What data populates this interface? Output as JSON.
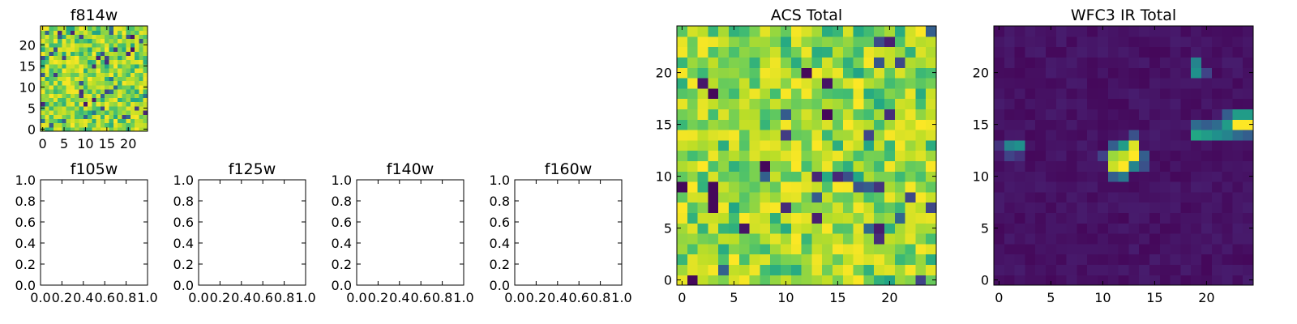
{
  "chart_data": [
    {
      "type": "heatmap",
      "title": "f814w",
      "xlim": [
        -0.5,
        24.5
      ],
      "ylim": [
        -0.5,
        24.5
      ],
      "xticks": [
        0,
        5,
        10,
        15,
        20
      ],
      "yticks": [
        0,
        5,
        10,
        15,
        20
      ],
      "colormap": "viridis",
      "grid": false,
      "size": [
        25,
        25
      ],
      "seed": 814,
      "distribution": "noise"
    },
    {
      "type": "heatmap",
      "title": "f105w",
      "xlim": [
        0,
        1
      ],
      "ylim": [
        0,
        1
      ],
      "xticks": [
        "0.0",
        "0.2",
        "0.4",
        "0.6",
        "0.8",
        "1.0"
      ],
      "yticks": [
        "0.0",
        "0.2",
        "0.4",
        "0.6",
        "0.8",
        "1.0"
      ],
      "empty": true
    },
    {
      "type": "heatmap",
      "title": "f125w",
      "xlim": [
        0,
        1
      ],
      "ylim": [
        0,
        1
      ],
      "xticks": [
        "0.0",
        "0.2",
        "0.4",
        "0.6",
        "0.8",
        "1.0"
      ],
      "yticks": [
        "0.0",
        "0.2",
        "0.4",
        "0.6",
        "0.8",
        "1.0"
      ],
      "empty": true
    },
    {
      "type": "heatmap",
      "title": "f140w",
      "xlim": [
        0,
        1
      ],
      "ylim": [
        0,
        1
      ],
      "xticks": [
        "0.0",
        "0.2",
        "0.4",
        "0.6",
        "0.8",
        "1.0"
      ],
      "yticks": [
        "0.0",
        "0.2",
        "0.4",
        "0.6",
        "0.8",
        "1.0"
      ],
      "empty": true
    },
    {
      "type": "heatmap",
      "title": "f160w",
      "xlim": [
        0,
        1
      ],
      "ylim": [
        0,
        1
      ],
      "xticks": [
        "0.0",
        "0.2",
        "0.4",
        "0.6",
        "0.8",
        "1.0"
      ],
      "yticks": [
        "0.0",
        "0.2",
        "0.4",
        "0.6",
        "0.8",
        "1.0"
      ],
      "empty": true
    },
    {
      "type": "heatmap",
      "title": "ACS Total",
      "xlim": [
        -0.5,
        24.5
      ],
      "ylim": [
        -0.5,
        24.5
      ],
      "xticks": [
        0,
        5,
        10,
        15,
        20
      ],
      "yticks": [
        0,
        5,
        10,
        15,
        20
      ],
      "colormap": "viridis",
      "grid": false,
      "size": [
        25,
        25
      ],
      "seed": 4242,
      "distribution": "noise",
      "dark_cells": [
        [
          14,
          16
        ],
        [
          8,
          11
        ],
        [
          3,
          8
        ],
        [
          3,
          9
        ],
        [
          3,
          7
        ],
        [
          1,
          0
        ],
        [
          3,
          18
        ],
        [
          0,
          9
        ],
        [
          12,
          20
        ]
      ]
    },
    {
      "type": "heatmap",
      "title": "WFC3 IR Total",
      "xlim": [
        -0.5,
        24.5
      ],
      "ylim": [
        -0.5,
        24.5
      ],
      "xticks": [
        0,
        5,
        10,
        15,
        20
      ],
      "yticks": [
        0,
        5,
        10,
        15,
        20
      ],
      "colormap": "viridis",
      "grid": false,
      "size": [
        25,
        25
      ],
      "seed": 153,
      "distribution": "background",
      "background_level": 0.05,
      "sources": [
        {
          "x": 12,
          "y": 11,
          "v": 1.0
        },
        {
          "x": 13,
          "y": 12,
          "v": 1.0
        },
        {
          "x": 13,
          "y": 13,
          "v": 0.95
        },
        {
          "x": 12,
          "y": 12,
          "v": 0.9
        },
        {
          "x": 11,
          "y": 11,
          "v": 0.92
        },
        {
          "x": 11,
          "y": 12,
          "v": 0.85
        },
        {
          "x": 12,
          "y": 13,
          "v": 0.55
        },
        {
          "x": 11,
          "y": 13,
          "v": 0.3
        },
        {
          "x": 13,
          "y": 11,
          "v": 0.45
        },
        {
          "x": 12,
          "y": 10,
          "v": 0.4
        },
        {
          "x": 11,
          "y": 10,
          "v": 0.3
        },
        {
          "x": 14,
          "y": 11,
          "v": 0.25
        },
        {
          "x": 13,
          "y": 14,
          "v": 0.25
        },
        {
          "x": 14,
          "y": 12,
          "v": 0.3
        },
        {
          "x": 10,
          "y": 12,
          "v": 0.2
        },
        {
          "x": 24,
          "y": 15,
          "v": 1.0
        },
        {
          "x": 23,
          "y": 15,
          "v": 1.0
        },
        {
          "x": 22,
          "y": 15,
          "v": 0.55
        },
        {
          "x": 23,
          "y": 16,
          "v": 0.55
        },
        {
          "x": 24,
          "y": 16,
          "v": 0.55
        },
        {
          "x": 22,
          "y": 16,
          "v": 0.3
        },
        {
          "x": 22,
          "y": 14,
          "v": 0.45
        },
        {
          "x": 21,
          "y": 14,
          "v": 0.5
        },
        {
          "x": 20,
          "y": 14,
          "v": 0.55
        },
        {
          "x": 19,
          "y": 14,
          "v": 0.6
        },
        {
          "x": 21,
          "y": 15,
          "v": 0.35
        },
        {
          "x": 20,
          "y": 15,
          "v": 0.3
        },
        {
          "x": 19,
          "y": 15,
          "v": 0.35
        },
        {
          "x": 23,
          "y": 14,
          "v": 0.35
        },
        {
          "x": 24,
          "y": 14,
          "v": 0.3
        },
        {
          "x": 19,
          "y": 20,
          "v": 0.5
        },
        {
          "x": 19,
          "y": 21,
          "v": 0.45
        },
        {
          "x": 20,
          "y": 20,
          "v": 0.2
        },
        {
          "x": 1,
          "y": 13,
          "v": 0.45
        },
        {
          "x": 2,
          "y": 13,
          "v": 0.5
        },
        {
          "x": 1,
          "y": 12,
          "v": 0.2
        },
        {
          "x": 0,
          "y": 13,
          "v": 0.15
        },
        {
          "x": 2,
          "y": 12,
          "v": 0.15
        }
      ]
    }
  ]
}
